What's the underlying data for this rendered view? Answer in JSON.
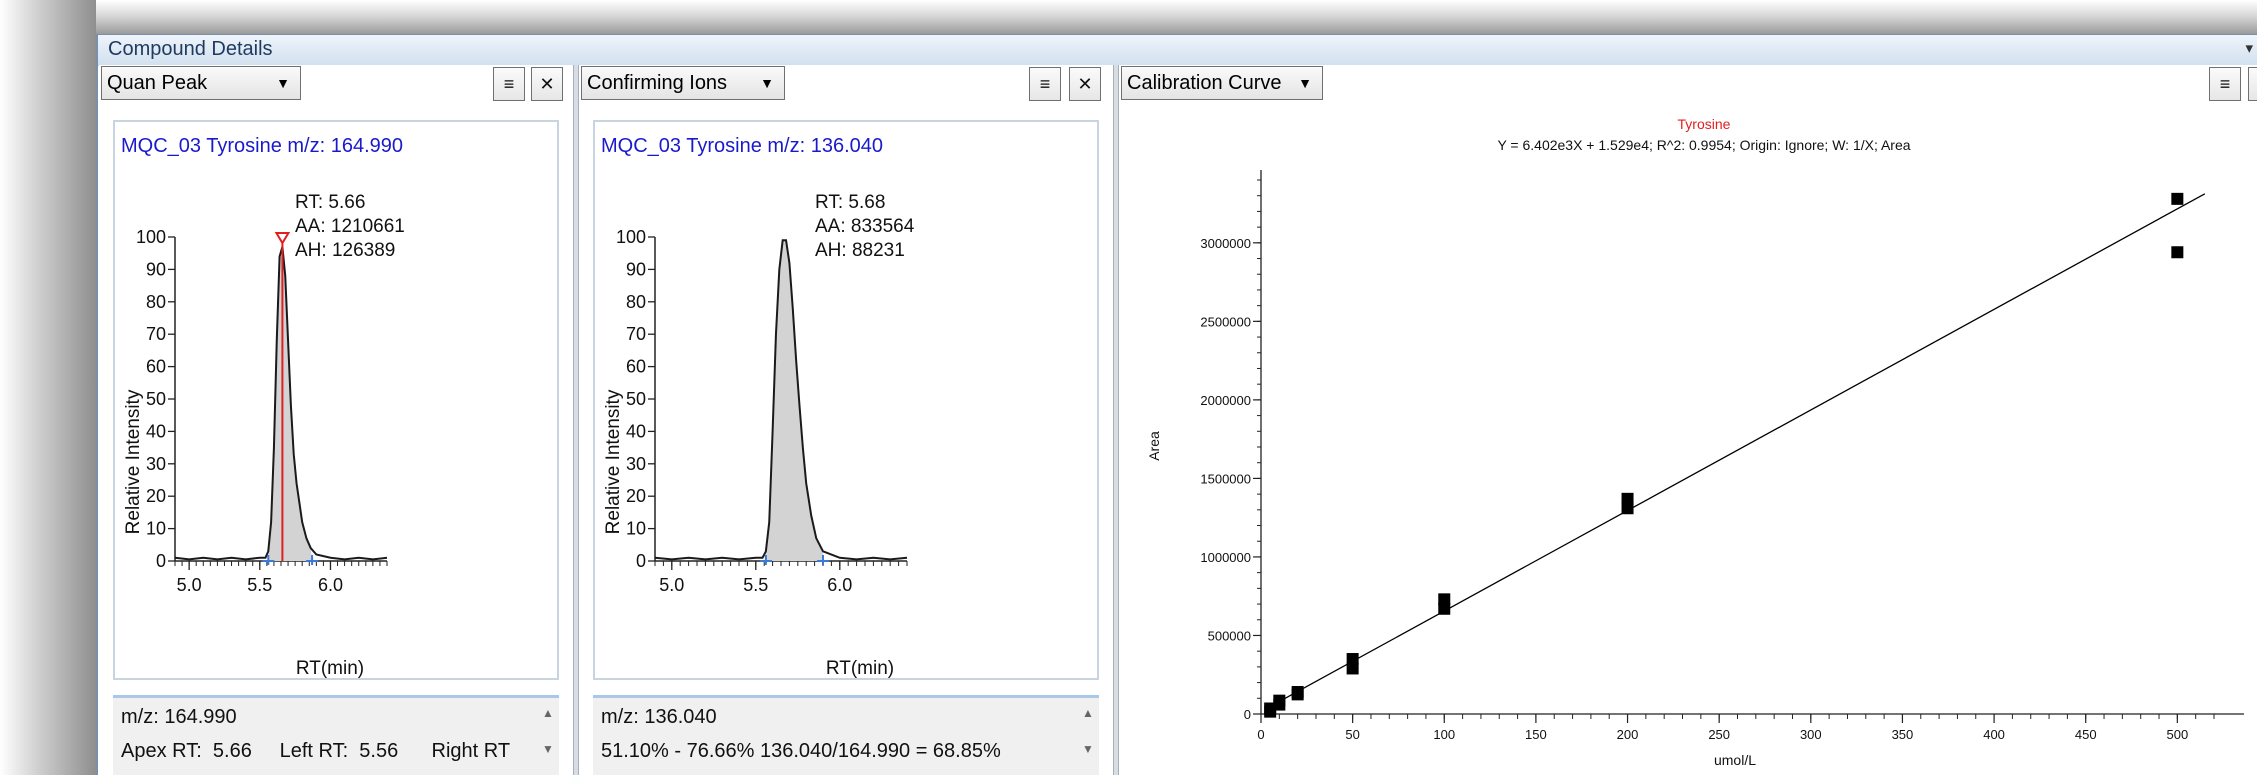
{
  "window": {
    "title": "Compound Details",
    "collapse_icon": "dropdown-arrow-icon"
  },
  "pane1": {
    "dropdown": "Quan Peak",
    "title": "MQC_03   Tyrosine   m/z: 164.990",
    "annotation": {
      "rt": "RT: 5.66",
      "aa": "AA: 1210661",
      "ah": "AH: 126389"
    },
    "y_label": "Relative Intensity",
    "x_label": "RT(min)",
    "info_line1": "m/z: 164.990",
    "info_line2": "Apex RT:  5.66     Left RT:  5.56      Right RT"
  },
  "pane2": {
    "dropdown": "Confirming Ions",
    "title": "MQC_03   Tyrosine   m/z: 136.040",
    "annotation": {
      "rt": "RT: 5.68",
      "aa": "AA: 833564",
      "ah": "AH: 88231"
    },
    "y_label": "Relative Intensity",
    "x_label": "RT(min)",
    "info_line1": "m/z: 136.040",
    "info_line2": "51.10% - 76.66% 136.040/164.990 = 68.85%"
  },
  "pane3": {
    "dropdown": "Calibration Curve"
  },
  "toolbar": {
    "menu_icon": "list-filter-icon",
    "close_icon": "close-icon",
    "menu_glyph": "≡",
    "close_glyph": "✕"
  },
  "chart_data": [
    {
      "type": "line",
      "title": "MQC_03   Tyrosine   m/z: 164.990",
      "xlabel": "RT(min)",
      "ylabel": "Relative Intensity",
      "xlim": [
        4.9,
        6.4
      ],
      "ylim": [
        0,
        100
      ],
      "x_ticks": [
        "5.0",
        "5.5",
        "6.0"
      ],
      "y_ticks": [
        "0",
        "10",
        "20",
        "30",
        "40",
        "50",
        "60",
        "70",
        "80",
        "90",
        "100"
      ],
      "peak_rt": 5.66,
      "peak_boundaries": [
        5.56,
        5.87
      ],
      "x": [
        4.9,
        5.0,
        5.1,
        5.2,
        5.3,
        5.4,
        5.5,
        5.54,
        5.56,
        5.58,
        5.6,
        5.62,
        5.64,
        5.66,
        5.68,
        5.7,
        5.72,
        5.74,
        5.76,
        5.78,
        5.8,
        5.83,
        5.86,
        5.9,
        6.0,
        6.1,
        6.2,
        6.3,
        6.4
      ],
      "y": [
        1,
        0.5,
        1,
        0.5,
        1,
        0.5,
        1,
        1,
        3,
        12,
        35,
        68,
        94,
        97,
        88,
        68,
        48,
        33,
        24,
        18,
        12,
        7,
        4,
        2,
        1,
        0.5,
        1,
        0.5,
        1
      ],
      "colors": {
        "line": "#1a1a1a",
        "fill": "#d3d3d3",
        "apex_marker": "#e02020",
        "boundary": "#3c7ad6"
      }
    },
    {
      "type": "line",
      "title": "MQC_03   Tyrosine   m/z: 136.040",
      "xlabel": "RT(min)",
      "ylabel": "Relative Intensity",
      "xlim": [
        4.9,
        6.4
      ],
      "ylim": [
        0,
        100
      ],
      "x_ticks": [
        "5.0",
        "5.5",
        "6.0"
      ],
      "y_ticks": [
        "0",
        "10",
        "20",
        "30",
        "40",
        "50",
        "60",
        "70",
        "80",
        "90",
        "100"
      ],
      "peak_rt": 5.68,
      "peak_boundaries": [
        5.56,
        5.9
      ],
      "x": [
        4.9,
        5.0,
        5.1,
        5.2,
        5.3,
        5.4,
        5.5,
        5.54,
        5.56,
        5.58,
        5.6,
        5.62,
        5.64,
        5.66,
        5.68,
        5.7,
        5.72,
        5.74,
        5.76,
        5.78,
        5.8,
        5.83,
        5.86,
        5.9,
        6.0,
        6.1,
        6.2,
        6.3,
        6.4
      ],
      "y": [
        1,
        0.5,
        1,
        0.5,
        1,
        0.5,
        1,
        1,
        3,
        12,
        40,
        70,
        90,
        99,
        99,
        92,
        78,
        62,
        48,
        35,
        24,
        14,
        7,
        3,
        1,
        0.5,
        1,
        0.5,
        1
      ],
      "colors": {
        "line": "#1a1a1a",
        "fill": "#d3d3d3",
        "boundary": "#3c7ad6"
      }
    },
    {
      "type": "scatter",
      "title": "Tyrosine",
      "subtitle": "Y = 6.402e3X + 1.529e4; R^2: 0.9954; Origin: Ignore; W: 1/X; Area",
      "xlabel": "umol/L",
      "ylabel": "Area",
      "xlim": [
        0,
        520
      ],
      "ylim": [
        0,
        3400000
      ],
      "x_ticks": [
        "0",
        "50",
        "100",
        "150",
        "200",
        "250",
        "300",
        "350",
        "400",
        "450",
        "500"
      ],
      "y_ticks": [
        "0",
        "500000",
        "1000000",
        "1500000",
        "2000000",
        "2500000",
        "3000000"
      ],
      "x_minor_step": 10,
      "points": [
        {
          "x": 5,
          "y": 15000
        },
        {
          "x": 5,
          "y": 35000
        },
        {
          "x": 10,
          "y": 60000
        },
        {
          "x": 10,
          "y": 85000
        },
        {
          "x": 20,
          "y": 125000
        },
        {
          "x": 20,
          "y": 140000
        },
        {
          "x": 50,
          "y": 290000
        },
        {
          "x": 50,
          "y": 350000
        },
        {
          "x": 100,
          "y": 670000
        },
        {
          "x": 100,
          "y": 730000
        },
        {
          "x": 200,
          "y": 1310000
        },
        {
          "x": 200,
          "y": 1370000
        },
        {
          "x": 500,
          "y": 2940000
        },
        {
          "x": 500,
          "y": 3280000
        }
      ],
      "fit": {
        "slope": 6402,
        "intercept": 15290
      },
      "colors": {
        "title": "#e02020",
        "marker": "#000000",
        "line": "#000000"
      }
    }
  ]
}
